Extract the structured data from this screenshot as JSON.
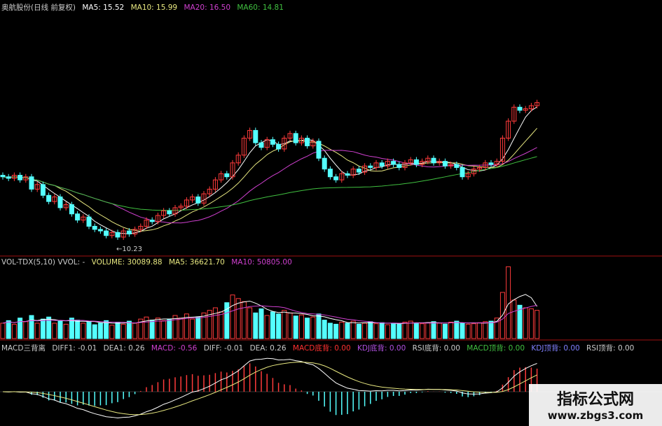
{
  "price_header": {
    "title": "奥航股份(日线 前复权)",
    "ma5": "MA5: 15.52",
    "ma10": "MA10: 15.99",
    "ma20": "MA20: 16.50",
    "ma60": "MA60: 14.81"
  },
  "low_label": "←10.23",
  "volume_header": {
    "name": "VOL-TDX(5,10) VVOL: -",
    "volume": "VOLUME: 30089.88",
    "ma5": "MA5: 36621.70",
    "ma10": "MA10: 50805.00"
  },
  "macd_header": {
    "name": "MACD三背离",
    "diff1": "DIFF1: -0.01",
    "dea1": "DEA1: 0.26",
    "macd": "MACD: -0.56",
    "diff": "DIFF: -0.01",
    "dea": "DEA: 0.26",
    "macd_bottom": "MACD底背: 0.00",
    "kdj_bottom": "KDJ底背: 0.00",
    "rsi_bottom": "RSI底背: 0.00",
    "macd_top": "MACD顶背: 0.00",
    "kdj_top": "KDJ顶背: 0.00",
    "rsi_top": "RSI顶背: 0.00"
  },
  "watermark": {
    "title": "指标公式网",
    "url": "www.zbgs3.com"
  },
  "colors": {
    "up": "#ff3b3b",
    "down": "#54ffff",
    "ma5": "#ffffff",
    "ma10": "#e8e880",
    "ma20": "#d040d0",
    "ma60": "#40c040",
    "divider": "#a01010"
  },
  "chart_data": {
    "type": "candlestick",
    "close": [
      14.4,
      14.3,
      14.5,
      14.2,
      14.4,
      13.6,
      13.9,
      13.2,
      12.8,
      13.1,
      12.4,
      12.6,
      12.0,
      11.6,
      11.8,
      11.2,
      11.0,
      10.9,
      10.6,
      10.8,
      10.5,
      10.9,
      10.7,
      11.0,
      11.2,
      11.6,
      11.5,
      11.9,
      12.2,
      12.0,
      12.4,
      12.5,
      12.9,
      13.1,
      12.7,
      13.3,
      13.6,
      14.2,
      14.6,
      14.4,
      15.3,
      15.8,
      16.9,
      17.4,
      16.6,
      16.3,
      16.8,
      16.5,
      16.2,
      16.9,
      17.2,
      16.6,
      16.9,
      16.4,
      16.7,
      15.6,
      14.9,
      14.4,
      14.2,
      14.6,
      14.5,
      14.9,
      14.7,
      15.1,
      15.0,
      15.3,
      15.1,
      15.4,
      15.2,
      15.0,
      15.3,
      15.5,
      15.2,
      15.4,
      15.6,
      15.3,
      15.4,
      15.1,
      15.2,
      15.0,
      14.4,
      14.6,
      14.9,
      15.0,
      15.3,
      15.2,
      15.4,
      16.9,
      18.0,
      18.9,
      18.7,
      18.8,
      19.0,
      19.2
    ],
    "volume": [
      30000,
      35000,
      28000,
      40000,
      33000,
      45000,
      30000,
      38000,
      42000,
      30000,
      35000,
      28000,
      40000,
      36000,
      30000,
      33000,
      27000,
      30000,
      35000,
      26000,
      32000,
      28000,
      34000,
      30000,
      38000,
      42000,
      36000,
      40000,
      35000,
      38000,
      45000,
      40000,
      48000,
      38000,
      42000,
      50000,
      55000,
      60000,
      52000,
      70000,
      85000,
      78000,
      72000,
      60000,
      50000,
      58000,
      45000,
      52000,
      48000,
      55000,
      50000,
      44000,
      46000,
      40000,
      42000,
      48000,
      36000,
      30000,
      28000,
      32000,
      30000,
      34000,
      28000,
      30000,
      33000,
      29000,
      31000,
      27000,
      30000,
      28000,
      32000,
      34000,
      30000,
      29000,
      31000,
      33000,
      30000,
      28000,
      32000,
      34000,
      30000,
      28000,
      29000,
      31000,
      33000,
      34000,
      40000,
      90000,
      140000,
      75000,
      65000,
      60000,
      58000,
      55000
    ],
    "ma_periods": [
      5,
      10,
      20,
      60
    ],
    "low_annotation": 10.23
  }
}
